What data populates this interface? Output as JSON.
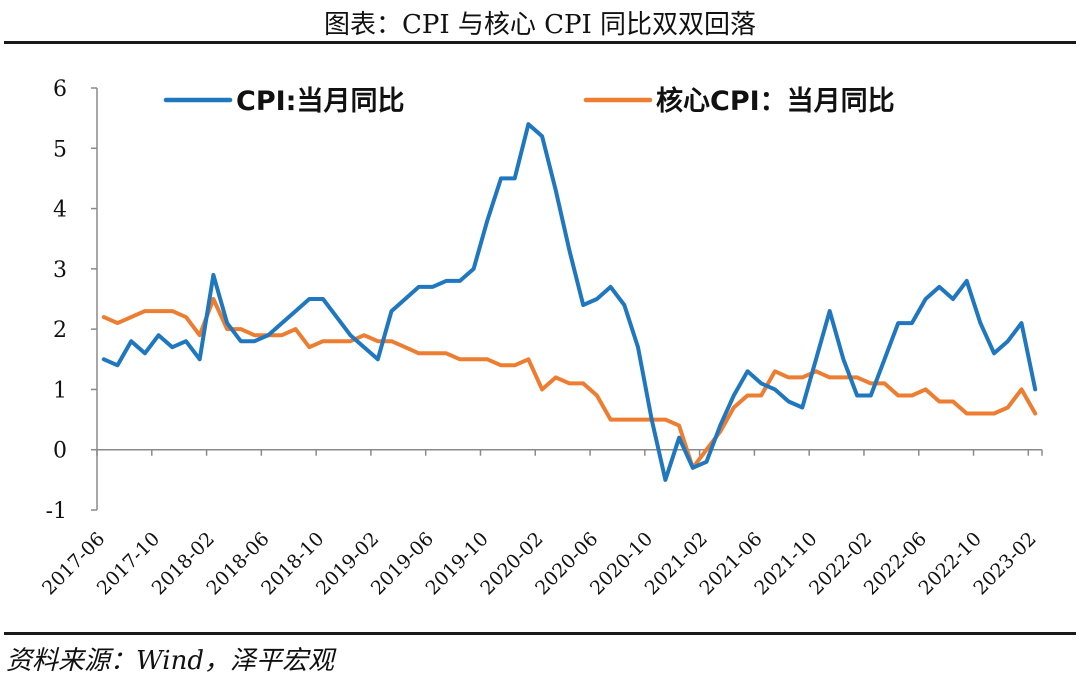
{
  "title": "图表：CPI 与核心 CPI 同比双双回落",
  "source": "资料来源：Wind，泽平宏观",
  "chart_data": {
    "type": "line",
    "title": "图表：CPI 与核心 CPI 同比双双回落",
    "ylim": [
      -1,
      6
    ],
    "yticks": [
      -1,
      0,
      1,
      2,
      3,
      4,
      5,
      6
    ],
    "xtick_labels": [
      "2017-06",
      "2017-10",
      "2018-02",
      "2018-06",
      "2018-10",
      "2019-02",
      "2019-06",
      "2019-10",
      "2020-02",
      "2020-06",
      "2020-10",
      "2021-02",
      "2021-06",
      "2021-10",
      "2022-02",
      "2022-06",
      "2022-10",
      "2023-02"
    ],
    "legend_placement": "top",
    "x": [
      "2017-06",
      "2017-07",
      "2017-08",
      "2017-09",
      "2017-10",
      "2017-11",
      "2017-12",
      "2018-01",
      "2018-02",
      "2018-03",
      "2018-04",
      "2018-05",
      "2018-06",
      "2018-07",
      "2018-08",
      "2018-09",
      "2018-10",
      "2018-11",
      "2018-12",
      "2019-01",
      "2019-02",
      "2019-03",
      "2019-04",
      "2019-05",
      "2019-06",
      "2019-07",
      "2019-08",
      "2019-09",
      "2019-10",
      "2019-11",
      "2019-12",
      "2020-01",
      "2020-02",
      "2020-03",
      "2020-04",
      "2020-05",
      "2020-06",
      "2020-07",
      "2020-08",
      "2020-09",
      "2020-10",
      "2020-11",
      "2020-12",
      "2021-01",
      "2021-02",
      "2021-03",
      "2021-04",
      "2021-05",
      "2021-06",
      "2021-07",
      "2021-08",
      "2021-09",
      "2021-10",
      "2021-11",
      "2021-12",
      "2022-01",
      "2022-02",
      "2022-03",
      "2022-04",
      "2022-05",
      "2022-06",
      "2022-07",
      "2022-08",
      "2022-09",
      "2022-10",
      "2022-11",
      "2022-12",
      "2023-01",
      "2023-02"
    ],
    "series": [
      {
        "name": "CPI:当月同比",
        "color": "#1F77C0",
        "values": [
          1.5,
          1.4,
          1.8,
          1.6,
          1.9,
          1.7,
          1.8,
          1.5,
          2.9,
          2.1,
          1.8,
          1.8,
          1.9,
          2.1,
          2.3,
          2.5,
          2.5,
          2.2,
          1.9,
          1.7,
          1.5,
          2.3,
          2.5,
          2.7,
          2.7,
          2.8,
          2.8,
          3.0,
          3.8,
          4.5,
          4.5,
          5.4,
          5.2,
          4.3,
          3.3,
          2.4,
          2.5,
          2.7,
          2.4,
          1.7,
          0.5,
          -0.5,
          0.2,
          -0.3,
          -0.2,
          0.4,
          0.9,
          1.3,
          1.1,
          1.0,
          0.8,
          0.7,
          1.5,
          2.3,
          1.5,
          0.9,
          0.9,
          1.5,
          2.1,
          2.1,
          2.5,
          2.7,
          2.5,
          2.8,
          2.1,
          1.6,
          1.8,
          2.1,
          1.0
        ]
      },
      {
        "name": "核心CPI：当月同比",
        "color": "#ED7D31",
        "values": [
          2.2,
          2.1,
          2.2,
          2.3,
          2.3,
          2.3,
          2.2,
          1.9,
          2.5,
          2.0,
          2.0,
          1.9,
          1.9,
          1.9,
          2.0,
          1.7,
          1.8,
          1.8,
          1.8,
          1.9,
          1.8,
          1.8,
          1.7,
          1.6,
          1.6,
          1.6,
          1.5,
          1.5,
          1.5,
          1.4,
          1.4,
          1.5,
          1.0,
          1.2,
          1.1,
          1.1,
          0.9,
          0.5,
          0.5,
          0.5,
          0.5,
          0.5,
          0.4,
          -0.3,
          0.0,
          0.3,
          0.7,
          0.9,
          0.9,
          1.3,
          1.2,
          1.2,
          1.3,
          1.2,
          1.2,
          1.2,
          1.1,
          1.1,
          0.9,
          0.9,
          1.0,
          0.8,
          0.8,
          0.6,
          0.6,
          0.6,
          0.7,
          1.0,
          0.6
        ]
      }
    ]
  }
}
